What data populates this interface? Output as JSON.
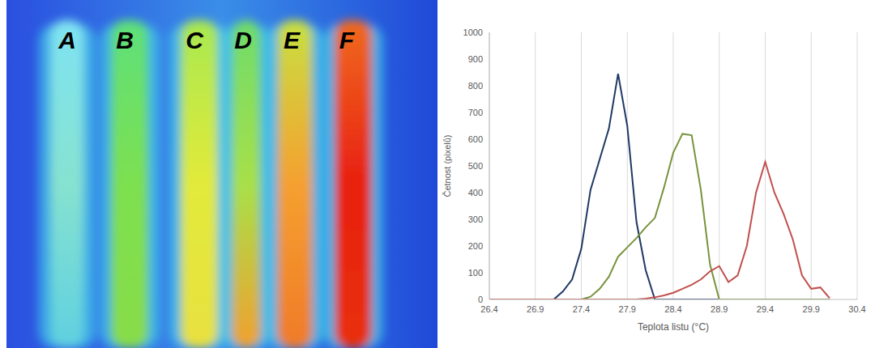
{
  "image": {
    "labels": [
      "A",
      "B",
      "C",
      "D",
      "E",
      "F"
    ]
  },
  "chart_data": {
    "type": "line",
    "x_label": "Teplota listu (°C)",
    "y_label": "Četnost  (pixelů)",
    "x": [
      26.4,
      26.5,
      26.6,
      26.7,
      26.8,
      26.9,
      27.0,
      27.1,
      27.2,
      27.3,
      27.4,
      27.5,
      27.6,
      27.7,
      27.8,
      27.9,
      28.0,
      28.1,
      28.2,
      28.3,
      28.4,
      28.5,
      28.6,
      28.7,
      28.8,
      28.9,
      29.0,
      29.1,
      29.2,
      29.3,
      29.4,
      29.5,
      29.6,
      29.7,
      29.8,
      29.9,
      30.0,
      30.1
    ],
    "series": [
      {
        "color": "#1f3864",
        "values": [
          0,
          0,
          0,
          0,
          0,
          0,
          0,
          0,
          30,
          75,
          190,
          410,
          525,
          640,
          845,
          650,
          290,
          110,
          0,
          0,
          0,
          0,
          0,
          0,
          0,
          0,
          0,
          0,
          0,
          0,
          0,
          0,
          0,
          0,
          0,
          0,
          0,
          0
        ]
      },
      {
        "color": "#77933c",
        "values": [
          0,
          0,
          0,
          0,
          0,
          0,
          0,
          0,
          0,
          0,
          0,
          10,
          40,
          85,
          160,
          195,
          230,
          270,
          305,
          420,
          550,
          620,
          615,
          410,
          130,
          0,
          0,
          0,
          0,
          0,
          0,
          0,
          0,
          0,
          0,
          0,
          0,
          0
        ]
      },
      {
        "color": "#c0504d",
        "values": [
          0,
          0,
          0,
          0,
          0,
          0,
          0,
          0,
          0,
          0,
          0,
          0,
          0,
          0,
          0,
          0,
          0,
          3,
          8,
          15,
          25,
          40,
          55,
          75,
          105,
          125,
          65,
          90,
          200,
          400,
          515,
          400,
          320,
          225,
          90,
          40,
          45,
          5
        ]
      }
    ],
    "xlim": [
      26.4,
      30.4
    ],
    "xticks": [
      26.4,
      26.9,
      27.4,
      27.9,
      28.4,
      28.9,
      29.4,
      29.9,
      30.4
    ],
    "ylim": [
      0,
      1000
    ],
    "yticks": [
      0,
      100,
      200,
      300,
      400,
      500,
      600,
      700,
      800,
      900,
      1000
    ],
    "grid": true
  }
}
